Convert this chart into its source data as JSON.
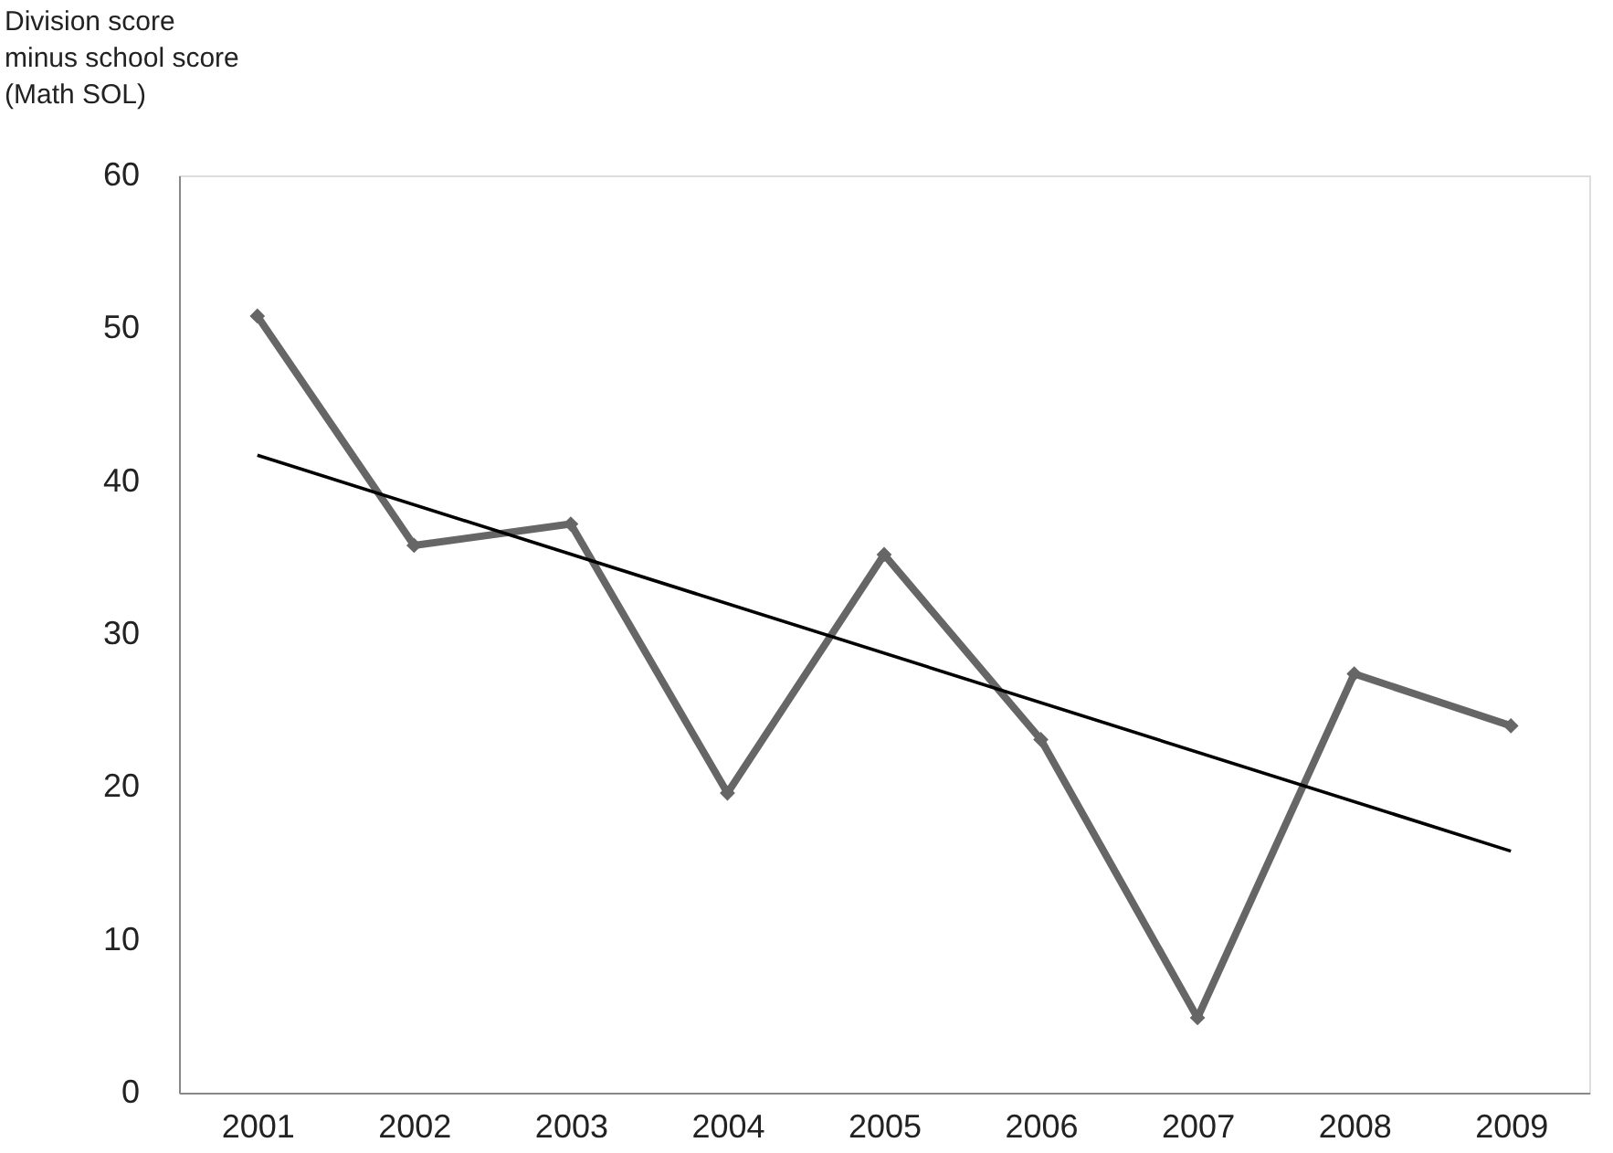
{
  "chart_data": {
    "type": "line",
    "ylabel": "Division score\nminus school score\n(Math SOL)",
    "x": [
      2001,
      2002,
      2003,
      2004,
      2005,
      2006,
      2007,
      2008,
      2009
    ],
    "series": [
      {
        "color": "#666666",
        "marker": "diamond",
        "line_style": "solid",
        "values": [
          50.8,
          35.8,
          37.2,
          19.6,
          35.2,
          23.1,
          4.9,
          27.4,
          24.0
        ]
      },
      {
        "type": "line",
        "color": "#000000",
        "marker": "none",
        "line_style": "solid",
        "x": [
          2001,
          2009
        ],
        "values": [
          41.7,
          15.8
        ]
      }
    ],
    "xlim": [
      2000.5,
      2009.5
    ],
    "xticks": [
      2001,
      2002,
      2003,
      2004,
      2005,
      2006,
      2007,
      2008,
      2009
    ],
    "ylim": [
      0,
      60
    ],
    "yticks": [
      0,
      10,
      20,
      30,
      40,
      50,
      60
    ],
    "grid": false
  }
}
